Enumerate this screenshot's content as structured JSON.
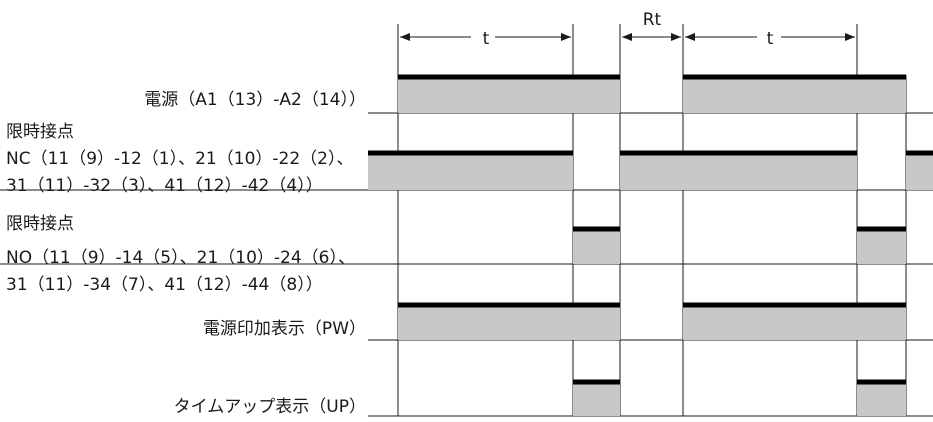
{
  "labels": {
    "power": "電源（A1（13）-A2（14））",
    "nc_title": "限時接点",
    "nc_line1": "NC（11（9）-12（1）、21（10）-22（2）、",
    "nc_line2": "31（11）-32（3）、41（12）-42（4））",
    "no_title": "限時接点",
    "no_line1": "NO（11（9）-14（5）、21（10）-24（6）、",
    "no_line2": "31（11）-34（7）、41（12）-44（8））",
    "pw": "電源印加表示（PW）",
    "up": "タイムアップ表示（UP）"
  },
  "dimensions": {
    "t1": "t",
    "rt": "Rt",
    "t2": "t"
  },
  "signals": [
    {
      "name": "power",
      "states": [
        "high",
        "low",
        "high"
      ]
    },
    {
      "name": "contact-nc",
      "states": [
        "high",
        "low",
        "high",
        "low",
        "high"
      ]
    },
    {
      "name": "contact-no",
      "states": [
        "low",
        "high",
        "low",
        "high",
        "low"
      ]
    },
    {
      "name": "pw-indicator",
      "states": [
        "high",
        "low",
        "high"
      ]
    },
    {
      "name": "up-indicator",
      "states": [
        "low",
        "high",
        "low",
        "high",
        "low"
      ]
    }
  ]
}
